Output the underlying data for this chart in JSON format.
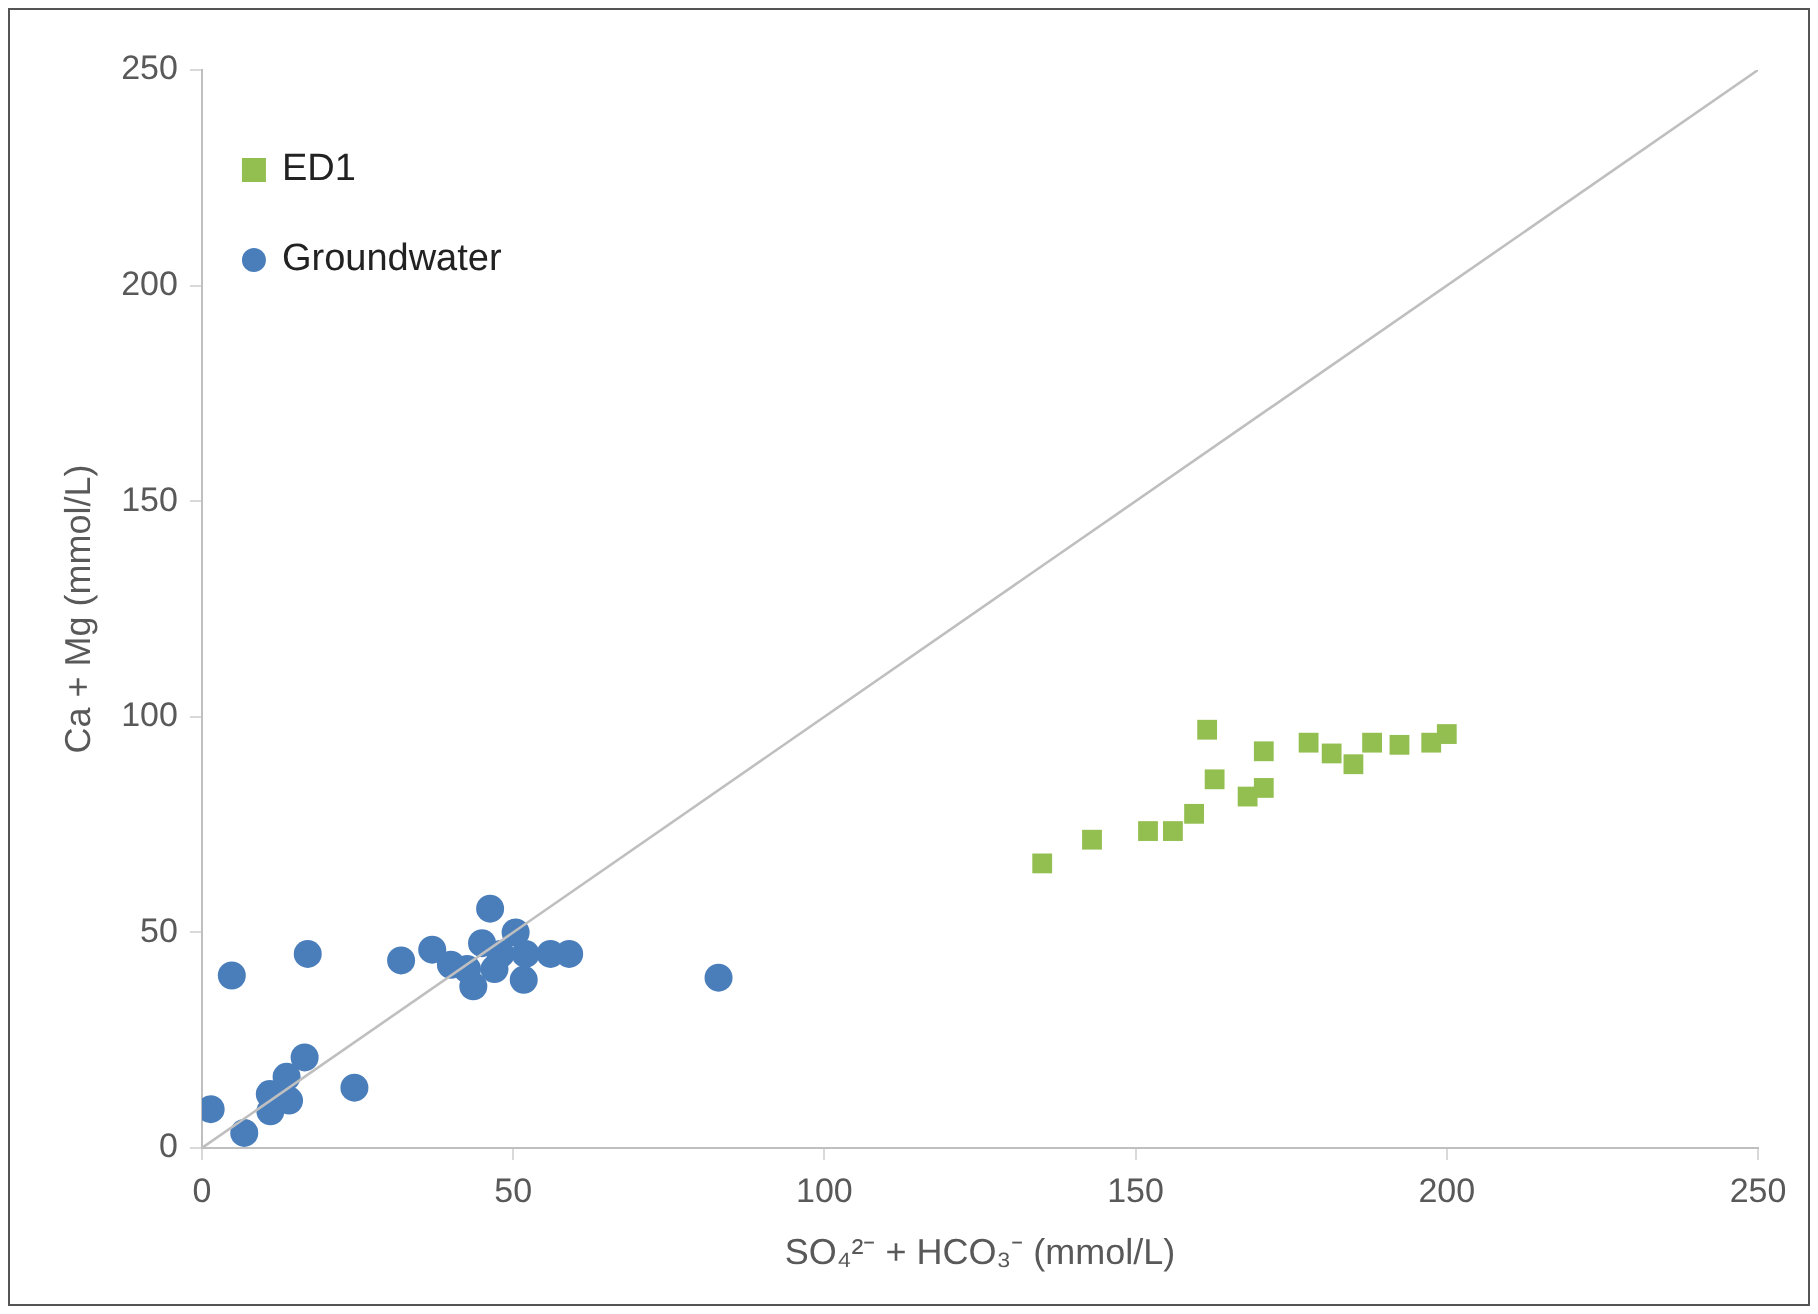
{
  "chart_data": {
    "type": "scatter",
    "xlabel": "SO₄²⁻ + HCO₃⁻ (mmol/L)",
    "ylabel": "Ca + Mg (mmol/L)",
    "xlim": [
      0,
      250
    ],
    "xticks": [
      0,
      50,
      100,
      150,
      200,
      250
    ],
    "ylim": [
      0,
      250
    ],
    "yticks": [
      0,
      50,
      100,
      150,
      200,
      250
    ],
    "grid": false,
    "legend": "top left",
    "series": [
      {
        "name": "ED1",
        "color": "#92bf4f",
        "marker": "square",
        "x": [
          135,
          143,
          152,
          156,
          159.4,
          161.5,
          162.7,
          168,
          170.6,
          170.6,
          177.8,
          181.5,
          185,
          188,
          192.4,
          197.5,
          200
        ],
        "values": [
          66,
          71.5,
          73.5,
          73.5,
          77.5,
          97,
          85.5,
          81.5,
          83.5,
          92,
          94,
          91.5,
          89,
          94,
          93.5,
          94,
          96
        ]
      },
      {
        "name": "Groundwater",
        "color": "#4a7ebb",
        "marker": "circle",
        "x": [
          1.4,
          4.8,
          6.8,
          17,
          16.5,
          13.6,
          10.9,
          11,
          14,
          24.5,
          32,
          37,
          40,
          43.6,
          46.3,
          45,
          48,
          50.4,
          51.7,
          52,
          56,
          59,
          42.6,
          47,
          83
        ],
        "values": [
          9,
          40,
          3.5,
          45,
          21,
          16.5,
          12.5,
          8.5,
          11,
          14,
          43.5,
          46,
          42.5,
          37.5,
          55.5,
          47.5,
          45,
          50,
          39,
          45,
          45,
          45,
          41.5,
          41.5,
          39.5
        ]
      },
      {
        "type": "line",
        "color": "#bfbfbf",
        "marker": "none",
        "x": [
          0,
          250
        ],
        "values": [
          0,
          250
        ]
      }
    ]
  }
}
